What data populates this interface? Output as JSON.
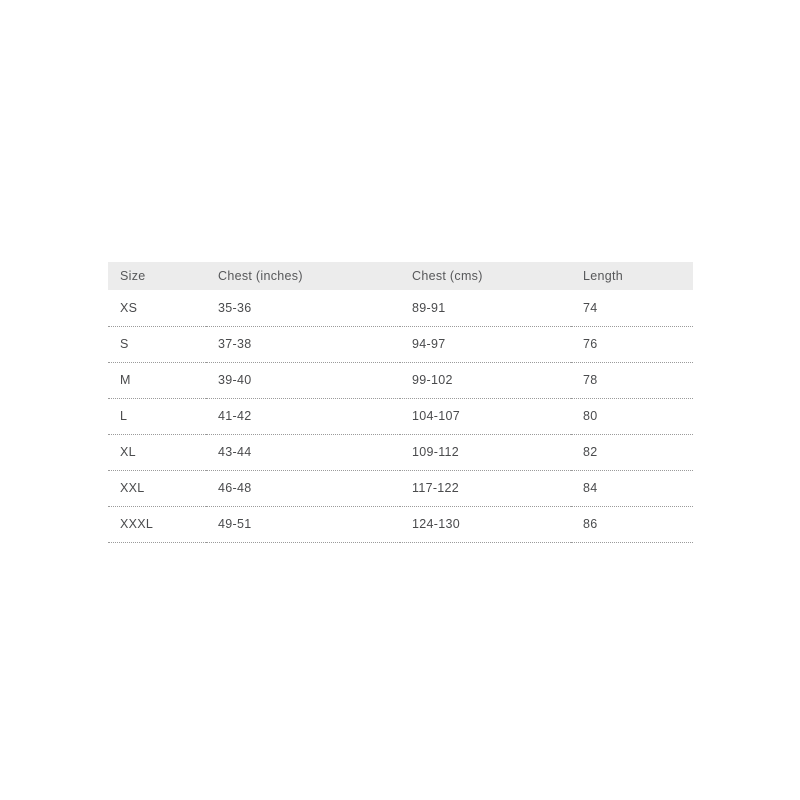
{
  "page": {
    "background": "#ffffff"
  },
  "size_chart": {
    "columns": {
      "size": "Size",
      "chest_inches": "Chest (inches)",
      "chest_cms": "Chest (cms)",
      "length": "Length"
    },
    "rows": [
      {
        "size": "XS",
        "chest_inches": "35-36",
        "chest_cms": "89-91",
        "length": "74"
      },
      {
        "size": "S",
        "chest_inches": "37-38",
        "chest_cms": "94-97",
        "length": "76"
      },
      {
        "size": "M",
        "chest_inches": "39-40",
        "chest_cms": "99-102",
        "length": "78"
      },
      {
        "size": "L",
        "chest_inches": "41-42",
        "chest_cms": "104-107",
        "length": "80"
      },
      {
        "size": "XL",
        "chest_inches": "43-44",
        "chest_cms": "109-112",
        "length": "82"
      },
      {
        "size": "XXL",
        "chest_inches": "46-48",
        "chest_cms": "117-122",
        "length": "84"
      },
      {
        "size": "XXXL",
        "chest_inches": "49-51",
        "chest_cms": "124-130",
        "length": "86"
      }
    ],
    "colors": {
      "header_bg": "#ececec",
      "header_text": "#57585a",
      "cell_text": "#4a4b4d",
      "divider": "#9b9b9b"
    }
  }
}
